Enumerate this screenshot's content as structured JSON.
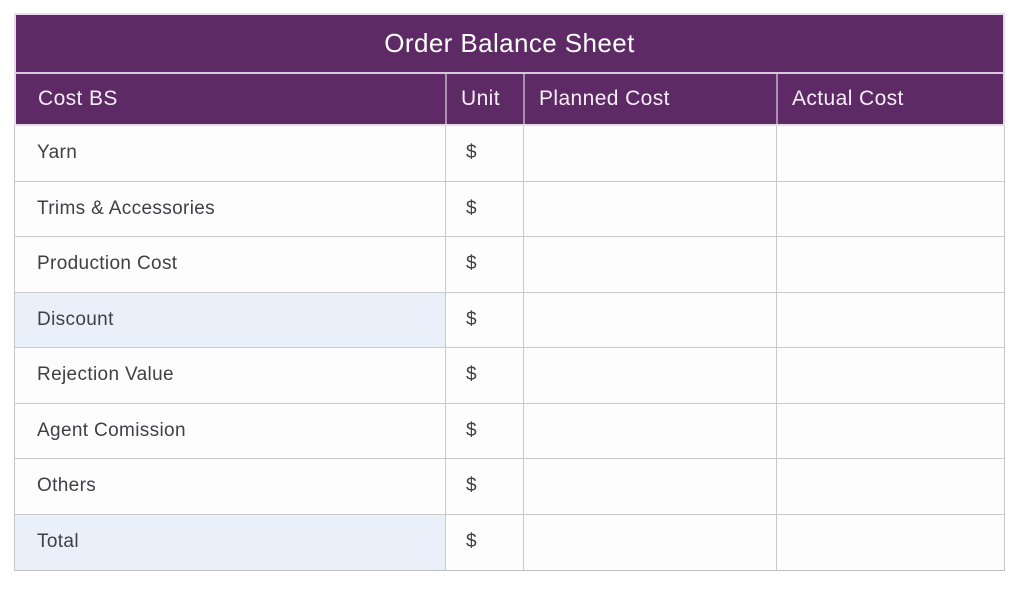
{
  "title": "Order Balance Sheet",
  "table": {
    "columns": [
      {
        "label": "Cost BS"
      },
      {
        "label": "Unit"
      },
      {
        "label": "Planned Cost"
      },
      {
        "label": "Actual Cost"
      }
    ],
    "rows": [
      {
        "label": "Yarn",
        "unit": "$",
        "planned_cost": "",
        "actual_cost": "",
        "highlighted": false
      },
      {
        "label": "Trims & Accessories",
        "unit": "$",
        "planned_cost": "",
        "actual_cost": "",
        "highlighted": false
      },
      {
        "label": "Production Cost",
        "unit": "$",
        "planned_cost": "",
        "actual_cost": "",
        "highlighted": false
      },
      {
        "label": "Discount",
        "unit": "$",
        "planned_cost": "",
        "actual_cost": "",
        "highlighted": true
      },
      {
        "label": "Rejection Value",
        "unit": "$",
        "planned_cost": "",
        "actual_cost": "",
        "highlighted": false
      },
      {
        "label": "Agent Comission",
        "unit": "$",
        "planned_cost": "",
        "actual_cost": "",
        "highlighted": false
      },
      {
        "label": "Others",
        "unit": "$",
        "planned_cost": "",
        "actual_cost": "",
        "highlighted": false
      },
      {
        "label": "Total",
        "unit": "$",
        "planned_cost": "",
        "actual_cost": "",
        "highlighted": true
      }
    ]
  },
  "colors": {
    "primary_purple": "#5d2a66",
    "highlight_blue": "#eaf0f9",
    "grid_line": "#c9c9c9"
  }
}
